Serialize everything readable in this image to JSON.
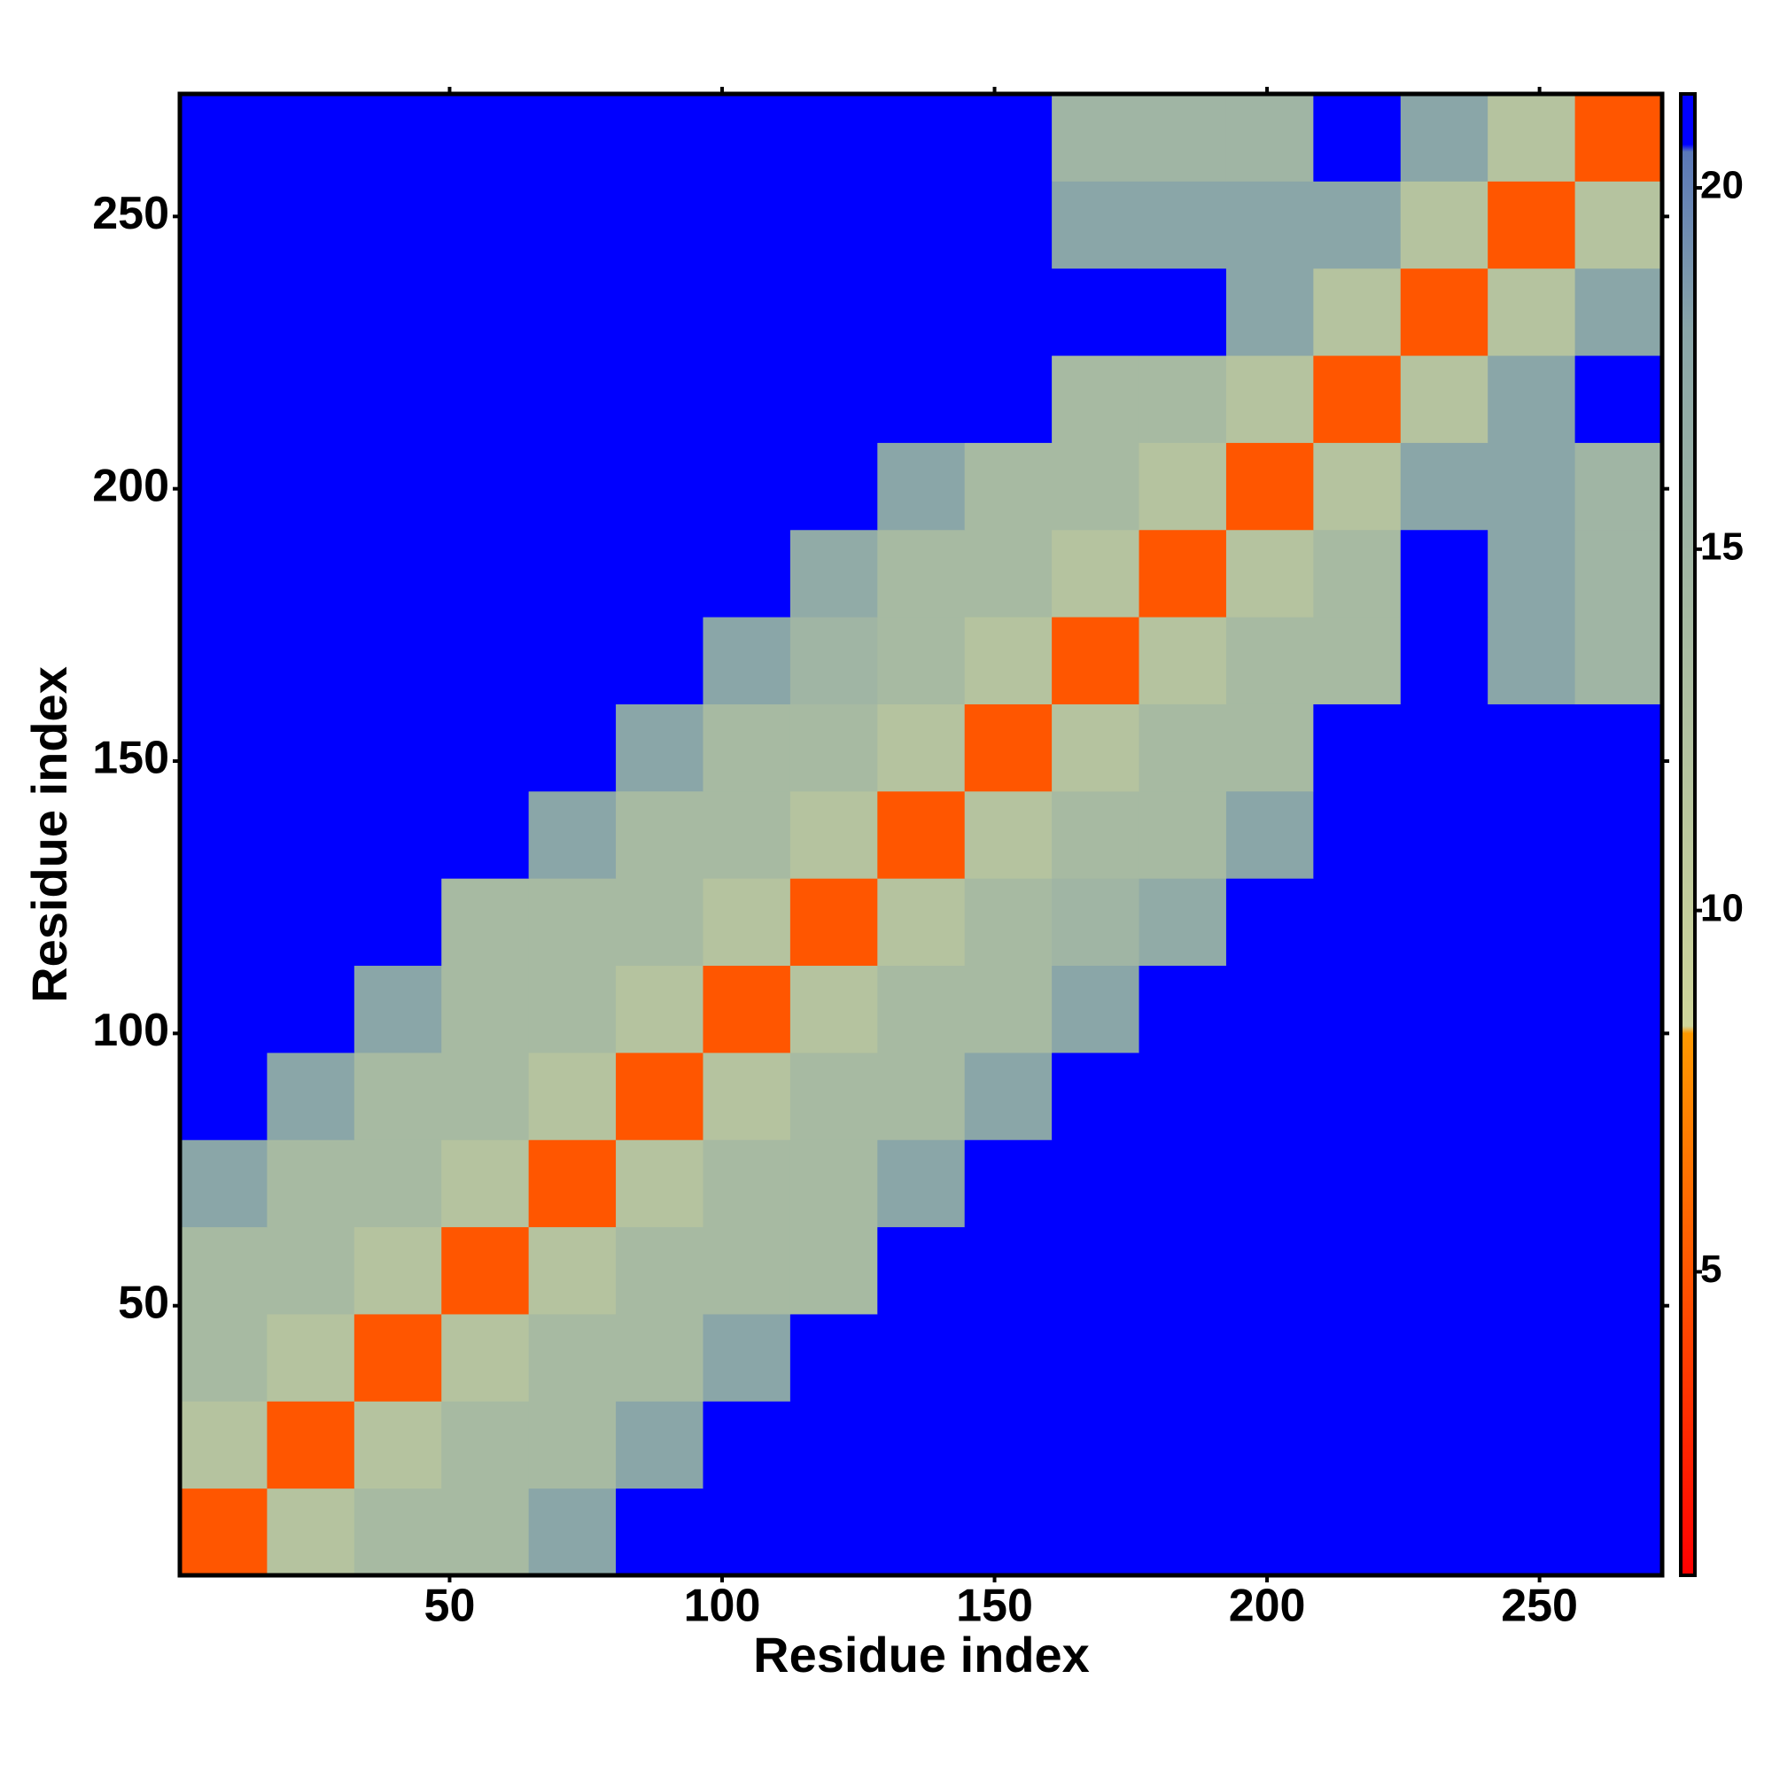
{
  "chart_data": {
    "type": "heatmap",
    "xlabel": "Residue index",
    "ylabel": "Residue index",
    "xbins": [
      0.5,
      16.5,
      32.5,
      48.5,
      64.5,
      80.5,
      96.5,
      112.5,
      128.5,
      144.5,
      160.5,
      176.5,
      192.5,
      208.5,
      224.5,
      240.5,
      256.5,
      272.5
    ],
    "ybins": [
      0.5,
      16.5,
      32.5,
      48.5,
      64.5,
      80.5,
      96.5,
      112.5,
      128.5,
      144.5,
      160.5,
      176.5,
      192.5,
      208.5,
      224.5,
      240.5,
      256.5,
      272.5
    ],
    "z": [
      [
        5,
        12,
        14,
        14,
        18,
        21,
        21,
        21,
        21,
        21,
        21,
        21,
        21,
        21,
        21,
        21,
        21
      ],
      [
        12,
        5,
        12,
        14,
        14,
        18,
        21,
        21,
        21,
        21,
        21,
        21,
        21,
        21,
        21,
        21,
        21
      ],
      [
        14,
        12,
        5,
        12,
        14,
        14,
        18,
        21,
        21,
        21,
        21,
        21,
        21,
        21,
        21,
        21,
        21
      ],
      [
        14,
        14,
        12,
        5,
        12,
        14,
        14,
        14,
        21,
        21,
        21,
        21,
        21,
        21,
        21,
        21,
        21
      ],
      [
        18,
        14,
        14,
        12,
        5,
        12,
        14,
        14,
        18,
        21,
        21,
        21,
        21,
        21,
        21,
        21,
        21
      ],
      [
        21,
        18,
        14,
        14,
        12,
        5,
        12,
        14,
        14,
        18,
        21,
        21,
        21,
        21,
        21,
        21,
        21
      ],
      [
        21,
        21,
        18,
        14,
        14,
        12,
        5,
        12,
        14,
        14,
        18,
        21,
        21,
        21,
        21,
        21,
        21
      ],
      [
        21,
        21,
        21,
        14,
        14,
        14,
        12,
        5,
        12,
        14,
        15,
        17,
        21,
        21,
        21,
        21,
        21
      ],
      [
        21,
        21,
        21,
        21,
        18,
        14,
        14,
        12,
        5,
        12,
        14,
        14,
        18,
        21,
        21,
        21,
        21
      ],
      [
        21,
        21,
        21,
        21,
        21,
        18,
        14,
        14,
        12,
        5,
        12,
        14,
        14,
        21,
        21,
        21,
        21
      ],
      [
        21,
        21,
        21,
        21,
        21,
        21,
        18,
        15,
        14,
        12,
        5,
        12,
        14,
        14,
        21,
        18,
        15
      ],
      [
        21,
        21,
        21,
        21,
        21,
        21,
        21,
        17,
        14,
        14,
        12,
        5,
        12,
        14,
        21,
        18,
        15
      ],
      [
        21,
        21,
        21,
        21,
        21,
        21,
        21,
        21,
        18,
        14,
        14,
        12,
        5,
        12,
        18,
        18,
        15
      ],
      [
        21,
        21,
        21,
        21,
        21,
        21,
        21,
        21,
        21,
        21,
        14,
        14,
        12,
        5,
        12,
        18,
        21
      ],
      [
        21,
        21,
        21,
        21,
        21,
        21,
        21,
        21,
        21,
        21,
        21,
        21,
        18,
        12,
        5,
        12,
        18
      ],
      [
        21,
        21,
        21,
        21,
        21,
        21,
        21,
        21,
        21,
        21,
        18,
        18,
        18,
        18,
        12,
        5,
        12
      ],
      [
        21,
        21,
        21,
        21,
        21,
        21,
        21,
        21,
        21,
        21,
        15,
        15,
        15,
        21,
        18,
        12,
        5
      ]
    ],
    "xlim": [
      0.5,
      272.5
    ],
    "ylim": [
      0.5,
      272.5
    ],
    "xticks": [
      50,
      100,
      150,
      200,
      250
    ],
    "yticks": [
      50,
      100,
      150,
      200,
      250
    ],
    "zlim": [
      0.8,
      21.3
    ],
    "zticks": [
      5,
      10,
      15,
      20
    ],
    "colorscale": [
      [
        0.8,
        "#ff0000"
      ],
      [
        8.3,
        "#ff9900"
      ],
      [
        8.4,
        "#cfd59a"
      ],
      [
        18,
        "#8aa6a8"
      ],
      [
        20.5,
        "#5a78b8"
      ],
      [
        20.6,
        "#0000ff"
      ],
      [
        21.3,
        "#0000ff"
      ]
    ]
  }
}
